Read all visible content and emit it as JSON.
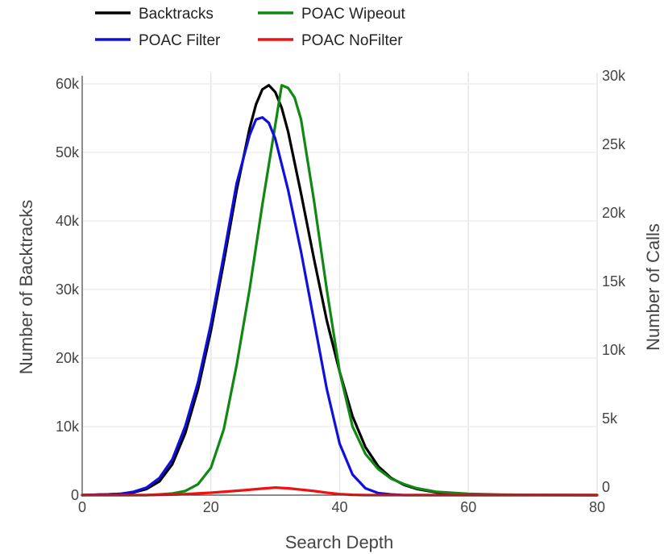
{
  "chart_data": {
    "type": "line",
    "title": "",
    "xlabel": "Search Depth",
    "ylabel": "Number of Backtracks",
    "y2label": "Number of Calls",
    "xlim": [
      0,
      80
    ],
    "ylim": [
      0,
      60000
    ],
    "y2lim": [
      0,
      30000
    ],
    "grid": true,
    "legend_position": "top",
    "x_ticks": [
      {
        "value": 0,
        "label": "0"
      },
      {
        "value": 20,
        "label": "20"
      },
      {
        "value": 40,
        "label": "40"
      },
      {
        "value": 60,
        "label": "60"
      },
      {
        "value": 80,
        "label": "80"
      }
    ],
    "y_ticks": [
      {
        "value": 0,
        "label": "0"
      },
      {
        "value": 10000,
        "label": "10k"
      },
      {
        "value": 20000,
        "label": "20k"
      },
      {
        "value": 30000,
        "label": "30k"
      },
      {
        "value": 40000,
        "label": "40k"
      },
      {
        "value": 50000,
        "label": "50k"
      },
      {
        "value": 60000,
        "label": "60k"
      }
    ],
    "y2_ticks": [
      {
        "value": 0,
        "label": "0"
      },
      {
        "value": 5000,
        "label": "5k"
      },
      {
        "value": 10000,
        "label": "10k"
      },
      {
        "value": 15000,
        "label": "15k"
      },
      {
        "value": 20000,
        "label": "20k"
      },
      {
        "value": 25000,
        "label": "25k"
      },
      {
        "value": 30000,
        "label": "30k"
      }
    ],
    "series": [
      {
        "name": "Backtracks",
        "color": "#000000",
        "axis": "y",
        "x": [
          0,
          4,
          6,
          8,
          10,
          12,
          14,
          16,
          18,
          20,
          22,
          24,
          26,
          27,
          28,
          29,
          30,
          31,
          32,
          34,
          36,
          38,
          40,
          42,
          44,
          46,
          48,
          50,
          52,
          55,
          60,
          65,
          70,
          80
        ],
        "y": [
          0,
          100,
          200,
          400,
          900,
          2000,
          4500,
          9000,
          15500,
          24000,
          34000,
          44500,
          53500,
          57000,
          59200,
          59800,
          58800,
          56500,
          53000,
          44000,
          34500,
          25500,
          18000,
          11500,
          7000,
          4200,
          2500,
          1500,
          900,
          400,
          100,
          30,
          10,
          0
        ]
      },
      {
        "name": "POAC Wipeout",
        "color": "#118811",
        "axis": "y2",
        "x": [
          0,
          10,
          12,
          14,
          16,
          18,
          20,
          22,
          24,
          26,
          28,
          30,
          31,
          32,
          33,
          34,
          36,
          38,
          40,
          42,
          44,
          46,
          48,
          50,
          52,
          55,
          60,
          65,
          70,
          80
        ],
        "y": [
          0,
          0,
          50,
          120,
          300,
          800,
          2000,
          4800,
          9500,
          15000,
          21200,
          27000,
          29900,
          29700,
          29000,
          27400,
          21500,
          15000,
          9000,
          5000,
          3000,
          1900,
          1200,
          800,
          500,
          250,
          100,
          40,
          10,
          0
        ]
      },
      {
        "name": "POAC Filter",
        "color": "#1010dd",
        "axis": "y",
        "x": [
          0,
          4,
          6,
          8,
          10,
          12,
          14,
          16,
          18,
          20,
          22,
          24,
          26,
          27,
          28,
          29,
          30,
          32,
          34,
          36,
          38,
          40,
          42,
          44,
          46,
          48,
          50,
          60,
          70,
          80
        ],
        "y": [
          0,
          100,
          200,
          500,
          1100,
          2500,
          5200,
          10000,
          16500,
          25000,
          35000,
          45500,
          52500,
          54800,
          55100,
          54300,
          52000,
          44500,
          35500,
          25500,
          15500,
          7500,
          3000,
          1000,
          300,
          100,
          0,
          0,
          0,
          0
        ]
      },
      {
        "name": "POAC NoFilter",
        "color": "#ee1111",
        "axis": "y",
        "x": [
          0,
          10,
          15,
          20,
          25,
          28,
          30,
          31,
          32,
          33,
          34,
          35,
          36,
          38,
          40,
          42,
          44,
          50,
          60,
          80
        ],
        "y": [
          0,
          0,
          100,
          350,
          700,
          950,
          1100,
          1050,
          1000,
          900,
          800,
          700,
          600,
          350,
          150,
          50,
          0,
          0,
          0,
          0
        ]
      }
    ]
  }
}
